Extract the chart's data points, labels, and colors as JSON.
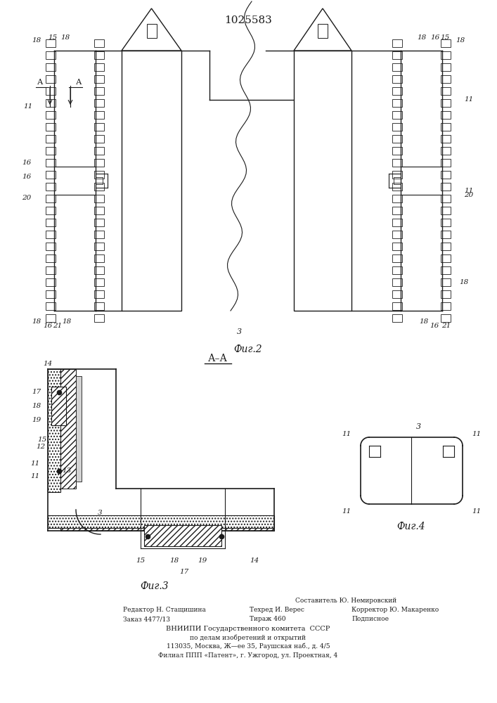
{
  "title": "1025583",
  "title_fontsize": 11,
  "bg_color": "#ffffff",
  "line_color": "#1a1a1a",
  "fig2_label": "Фиг.2",
  "fig3_label": "Фиг.3",
  "fig4_label": "Фиг.4",
  "aa_label": "А–А",
  "footer_line0": "Составитель Ю. Немировский",
  "footer_line1a": "Редактор Н. Стащишина",
  "footer_line1b": "Техред И. Верес",
  "footer_line1c": "Корректор Ю. Макаренко",
  "footer_line2a": "Заказ 4477/13",
  "footer_line2b": "Тираж 460",
  "footer_line2c": "Подписное",
  "footer_vniipи": "ВНИИПИ Государственного комитета  СССР",
  "footer_po": "по делам изобретений и открытий",
  "footer_addr": "113035, Москва, Ж—ее 35, Раушская наб., д. 4/5",
  "footer_filial": "Филиал ППП «Патент», г. Ужгород, ул. Проектная, 4"
}
